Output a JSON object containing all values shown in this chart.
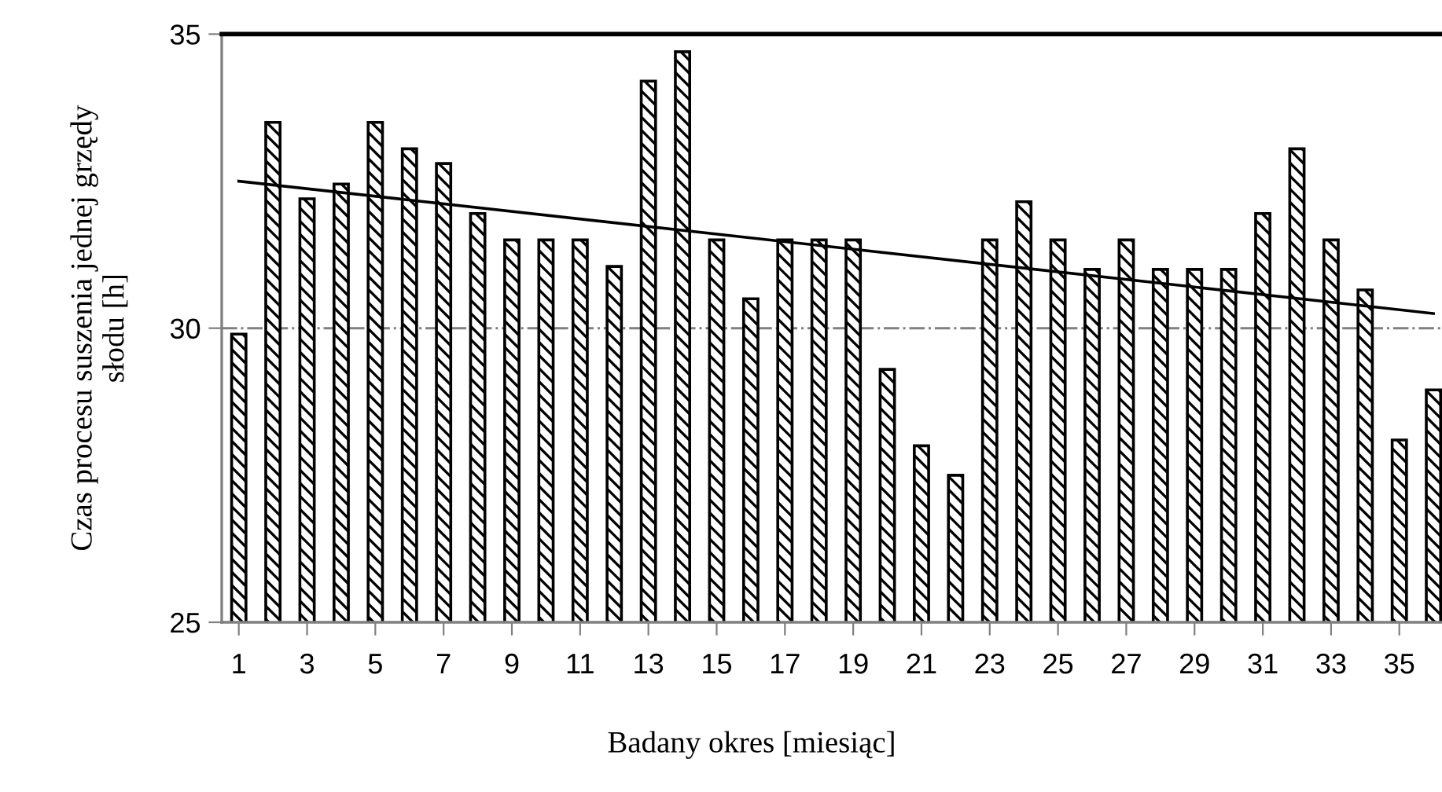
{
  "chart_data": {
    "type": "bar",
    "xlabel": "Badany okres [miesiąc]",
    "ylabel": "Czas procesu suszenia jednej grzędy\nsłodu [h]",
    "x": [
      1,
      2,
      3,
      4,
      5,
      6,
      7,
      8,
      9,
      10,
      11,
      12,
      13,
      14,
      15,
      16,
      17,
      18,
      19,
      20,
      21,
      22,
      23,
      24,
      25,
      26,
      27,
      28,
      29,
      30,
      31,
      32,
      33,
      34,
      35,
      36
    ],
    "series": [
      {
        "color": "#000000",
        "values": [
          29.9,
          33.5,
          32.2,
          32.45,
          33.5,
          33.05,
          32.8,
          31.95,
          31.5,
          31.5,
          31.5,
          31.05,
          34.2,
          34.7,
          31.5,
          30.5,
          31.5,
          31.5,
          31.5,
          29.3,
          28.0,
          27.5,
          31.5,
          32.15,
          31.5,
          31.0,
          31.5,
          31.0,
          31.0,
          31.0,
          31.95,
          33.05,
          31.5,
          30.65,
          28.1,
          28.95
        ]
      },
      {
        "type": "line",
        "color": "#000000",
        "x": [
          1,
          36
        ],
        "values": [
          32.5,
          30.25
        ]
      }
    ],
    "xlim": [
      0.5,
      36.25
    ],
    "xticks": [
      1,
      3,
      5,
      7,
      9,
      11,
      13,
      15,
      17,
      19,
      21,
      23,
      25,
      27,
      29,
      31,
      33,
      35
    ],
    "ylim": [
      25,
      35
    ],
    "yticks": [
      25,
      30,
      35
    ],
    "ref_lines": [
      {
        "axis": "y",
        "value": 30,
        "color": "#808080",
        "line_style": "dashdot"
      }
    ],
    "grid": false,
    "legend": false
  }
}
